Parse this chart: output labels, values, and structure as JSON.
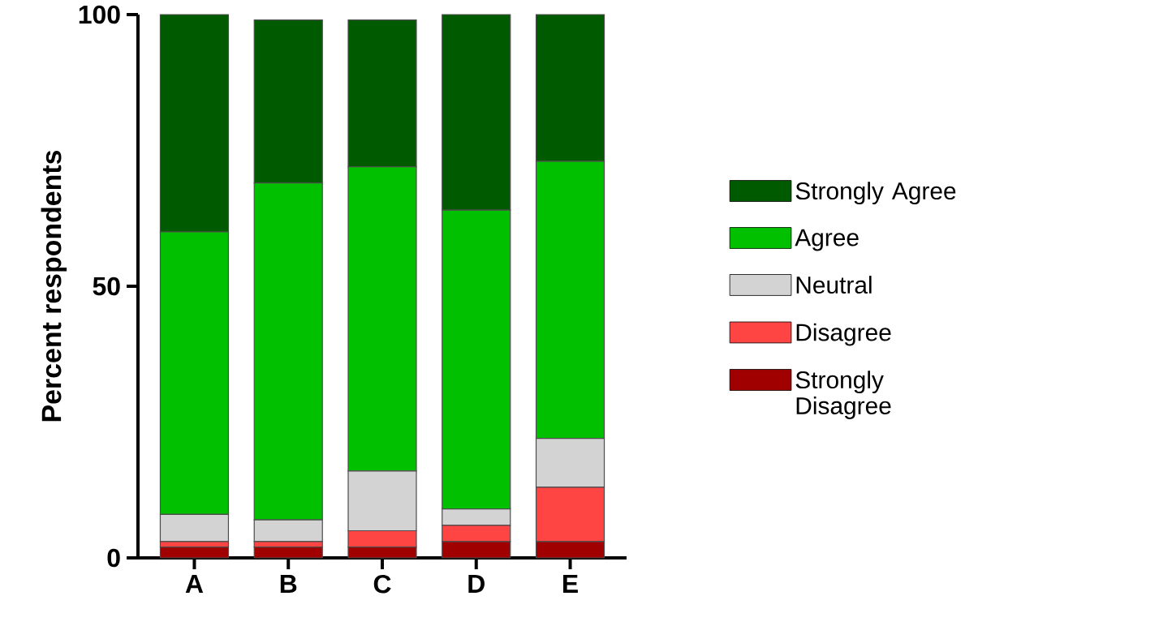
{
  "chart_data": {
    "type": "bar",
    "stacked": true,
    "ylabel": "Percent respondents",
    "categories": [
      "A",
      "B",
      "C",
      "D",
      "E"
    ],
    "series": [
      {
        "name": "Strongly Disagree",
        "color": "#a00000",
        "values": [
          2,
          2,
          2,
          3,
          3
        ]
      },
      {
        "name": "Disagree",
        "color": "#ff4444",
        "values": [
          1,
          1,
          3,
          3,
          10
        ]
      },
      {
        "name": "Neutral",
        "color": "#d3d3d3",
        "values": [
          5,
          4,
          11,
          3,
          9
        ]
      },
      {
        "name": "Agree",
        "color": "#00c000",
        "values": [
          52,
          62,
          56,
          55,
          51
        ]
      },
      {
        "name": "Strongly Agree",
        "color": "#005a00",
        "values": [
          40,
          30,
          27,
          36,
          27
        ]
      }
    ],
    "ylim": [
      0,
      100
    ],
    "yticks": [
      0,
      50,
      100
    ],
    "legend": "right",
    "grid": false
  }
}
